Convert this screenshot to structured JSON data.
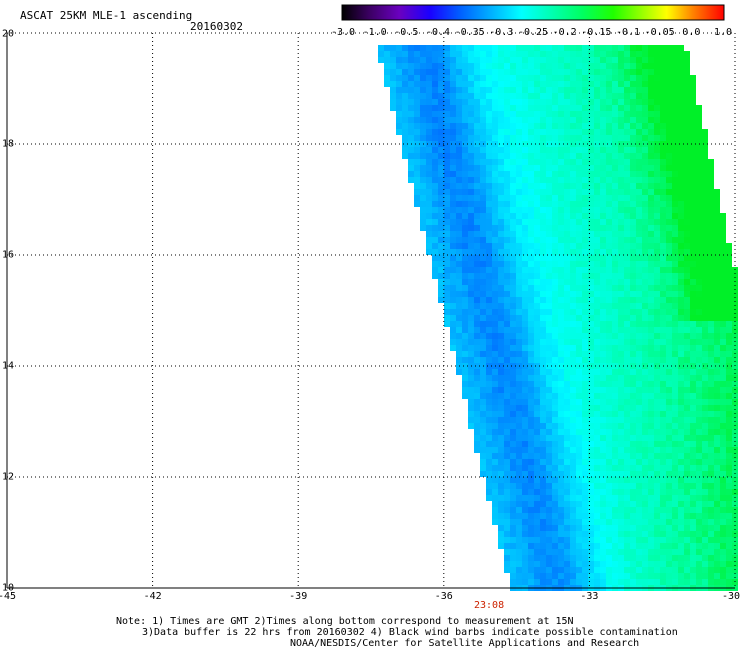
{
  "title": "ASCAT 25KM MLE-1 ascending",
  "date": "20160302",
  "colorbar": {
    "labels": [
      "-3.0",
      "-1.0",
      "-0.5",
      "-0.4",
      "-0.35",
      "-0.3",
      "-0.25",
      "-0.2",
      "-0.15",
      "-0.1",
      "-0.05",
      "0.0",
      "1.0"
    ],
    "colors": [
      "#000000",
      "#6a00a8",
      "#0000ff",
      "#0070ff",
      "#00b8ff",
      "#00ffff",
      "#00ffb4",
      "#00ff60",
      "#00ff00",
      "#9cff00",
      "#ffff00",
      "#ff8000",
      "#ff0000"
    ]
  },
  "map": {
    "lon_range": [
      -45,
      -30
    ],
    "lat_range": [
      10,
      20
    ],
    "lon_labels": [
      "-45",
      "-42",
      "-39",
      "-36",
      "-33",
      "-30"
    ],
    "lat_labels": [
      "20",
      "18",
      "16",
      "14",
      "12",
      "10"
    ],
    "pass_time": "23:08"
  },
  "notes": [
    "Note: 1) Times are GMT 2)Times along bottom correspond to measurement at 15N",
    "3)Data buffer is 22 hrs from 20160302 4) Black wind barbs indicate possible contamination",
    "NOAA/NESDIS/Center for Satellite Applications and Research"
  ]
}
